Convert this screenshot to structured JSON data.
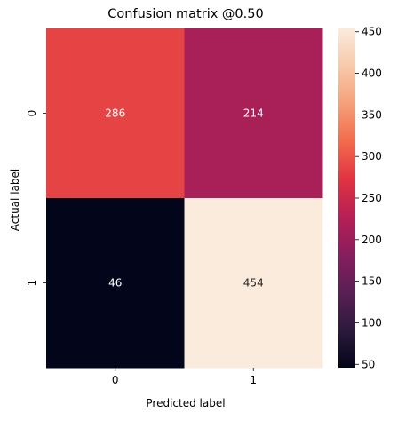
{
  "chart_data": {
    "type": "heatmap",
    "title": "Confusion matrix @0.50",
    "xlabel": "Predicted label",
    "ylabel": "Actual label",
    "x_categories": [
      "0",
      "1"
    ],
    "y_categories": [
      "0",
      "1"
    ],
    "values": [
      [
        286,
        214
      ],
      [
        46,
        454
      ]
    ],
    "cell_labels": [
      [
        "286",
        "214"
      ],
      [
        "46",
        "454"
      ]
    ],
    "colorbar": {
      "colormap": "rocket",
      "vmin": 46,
      "vmax": 454,
      "ticks": [
        50,
        100,
        150,
        200,
        250,
        300,
        350,
        400,
        450
      ],
      "tick_labels": [
        "50",
        "100",
        "150",
        "200",
        "250",
        "300",
        "350",
        "400",
        "450"
      ]
    },
    "colormap_stops": [
      "#03051a",
      "#2b1a3c",
      "#5a1f55",
      "#881e5d",
      "#b71f55",
      "#e13342",
      "#f26b4b",
      "#f5a07a",
      "#f7c9aa",
      "#faebdd"
    ],
    "annotation_colors": {
      "light_text": "#ffffff",
      "dark_text": "#262626"
    }
  }
}
